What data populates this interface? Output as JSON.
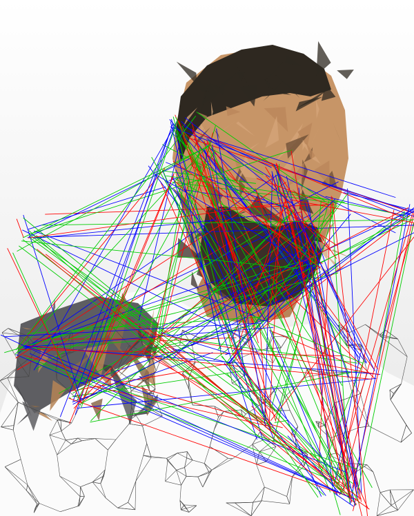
{
  "artwork": {
    "style": "low-poly-triangulated-portrait",
    "subject": "man-portrait-head-and-shoulders",
    "overlay_line_colors": [
      "#ff0000",
      "#00cc00",
      "#0000ff"
    ],
    "palette": {
      "background_top": "#ffffff",
      "background_bottom": "#e6e6e6",
      "hair": "#2e2820",
      "skin_light": "#d6a67a",
      "skin_mid": "#b98559",
      "skin_dark": "#6a4c34",
      "beard": "#3a2f28",
      "shirt_dark": "#5e5e62",
      "shirt_tan": "#b58456",
      "mesh_lines": "#4a4a4a"
    }
  }
}
